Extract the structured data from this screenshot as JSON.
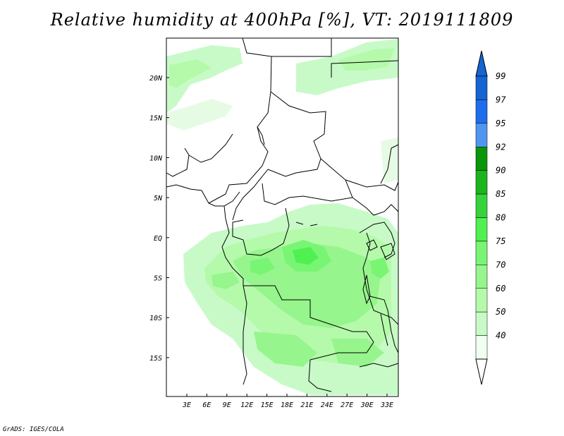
{
  "title": "Relative humidity at 400hPa [%], VT: 2019111809",
  "credit": "GrADS: IGES/COLA",
  "map": {
    "lon_labels": [
      "3E",
      "6E",
      "9E",
      "12E",
      "15E",
      "18E",
      "21E",
      "24E",
      "27E",
      "30E",
      "33E"
    ],
    "lat_labels": [
      "20N",
      "15N",
      "10N",
      "5N",
      "EQ",
      "5S",
      "10S",
      "15S"
    ],
    "projection": "lat-lon",
    "background": "#ffffff",
    "coastline_color": "#000000"
  },
  "legend": {
    "labels": [
      "99",
      "97",
      "95",
      "92",
      "90",
      "85",
      "80",
      "75",
      "70",
      "60",
      "50",
      "40"
    ],
    "colors": [
      "#1464d2",
      "#1e6eeb",
      "#5096f0",
      "#0a960a",
      "#1eb41e",
      "#37d23c",
      "#50f050",
      "#78f573",
      "#96f58c",
      "#b4faaa",
      "#c8fac8",
      "#f0fff0"
    ],
    "extend": "both"
  }
}
